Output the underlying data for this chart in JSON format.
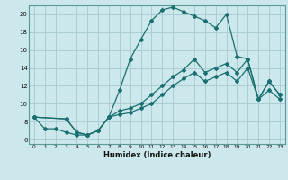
{
  "xlabel": "Humidex (Indice chaleur)",
  "bg_color": "#cce8ec",
  "grid_color": "#aacdd4",
  "line_color": "#1a7070",
  "xlim": [
    -0.5,
    23.5
  ],
  "ylim": [
    5.5,
    21.0
  ],
  "xticks": [
    0,
    1,
    2,
    3,
    4,
    5,
    6,
    7,
    8,
    9,
    10,
    11,
    12,
    13,
    14,
    15,
    16,
    17,
    18,
    19,
    20,
    21,
    22,
    23
  ],
  "yticks": [
    6,
    8,
    10,
    12,
    14,
    16,
    18,
    20
  ],
  "line1_x": [
    0,
    1,
    2,
    3,
    4,
    5,
    6,
    7,
    8,
    9,
    10,
    11,
    12,
    13,
    14,
    15,
    16,
    17,
    18,
    19,
    20,
    21,
    22,
    23
  ],
  "line1_y": [
    8.5,
    7.2,
    7.2,
    6.8,
    6.5,
    6.5,
    7.0,
    8.5,
    11.5,
    15.0,
    17.2,
    19.3,
    20.5,
    20.8,
    20.3,
    19.8,
    19.3,
    18.5,
    20.0,
    15.3,
    15.0,
    10.5,
    12.5,
    11.0
  ],
  "line2_x": [
    0,
    3,
    4,
    5,
    6,
    7,
    8,
    9,
    10,
    11,
    12,
    13,
    14,
    15,
    16,
    17,
    18,
    19,
    20,
    21,
    22,
    23
  ],
  "line2_y": [
    8.5,
    8.3,
    6.8,
    6.5,
    7.0,
    8.5,
    9.2,
    9.5,
    10.0,
    11.0,
    12.0,
    13.0,
    13.8,
    15.0,
    13.5,
    14.0,
    14.5,
    13.5,
    15.0,
    10.5,
    12.5,
    11.0
  ],
  "line3_x": [
    0,
    3,
    4,
    5,
    6,
    7,
    8,
    9,
    10,
    11,
    12,
    13,
    14,
    15,
    16,
    17,
    18,
    19,
    20,
    21,
    22,
    23
  ],
  "line3_y": [
    8.5,
    8.3,
    6.8,
    6.5,
    7.0,
    8.5,
    8.8,
    9.0,
    9.5,
    10.0,
    11.0,
    12.0,
    12.8,
    13.5,
    12.5,
    13.0,
    13.5,
    12.5,
    14.0,
    10.5,
    11.5,
    10.5
  ]
}
